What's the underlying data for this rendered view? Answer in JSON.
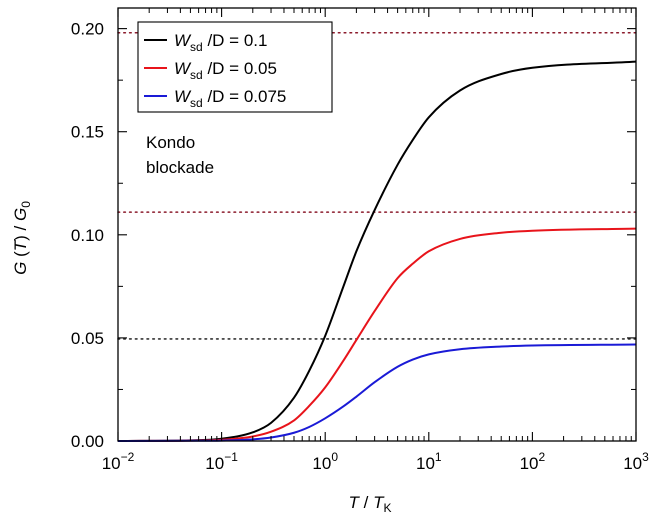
{
  "chart_data": {
    "type": "line",
    "x_scale": "log",
    "xlim": [
      0.01,
      1000
    ],
    "ylim": [
      0,
      0.21
    ],
    "xticks": [
      {
        "base": "10",
        "exp": "−2"
      },
      {
        "base": "10",
        "exp": "−1"
      },
      {
        "base": "10",
        "exp": "0"
      },
      {
        "base": "10",
        "exp": "1"
      },
      {
        "base": "10",
        "exp": "2"
      },
      {
        "base": "10",
        "exp": "3"
      }
    ],
    "xtick_values": [
      0.01,
      0.1,
      1,
      10,
      100,
      1000
    ],
    "yticks": [
      "0.00",
      "0.05",
      "0.10",
      "0.15",
      "0.20"
    ],
    "ytick_values": [
      0,
      0.05,
      0.1,
      0.15,
      0.2
    ],
    "xlabel": {
      "t1": "T",
      "sep": " / ",
      "t2": "T",
      "sub": "K"
    },
    "ylabel": {
      "g": "G",
      "open": " (",
      "t": "T",
      "close": ") / ",
      "g2": "G",
      "sub": "0"
    },
    "annotation": [
      "Kondo",
      "blockade"
    ],
    "reference_lines": [
      {
        "y": 0.198,
        "color": "#8b1a2b"
      },
      {
        "y": 0.111,
        "color": "#8b1a2b"
      },
      {
        "y": 0.0495,
        "color": "#333333"
      }
    ],
    "series": [
      {
        "legend": {
          "w": "W",
          "sub": "sd",
          "rest": " /D = 0.1"
        },
        "color": "#000000",
        "x": [
          0.01,
          0.05,
          0.1,
          0.2,
          0.3,
          0.5,
          0.7,
          1,
          1.5,
          2,
          3,
          5,
          7,
          10,
          20,
          50,
          100,
          1000
        ],
        "y": [
          0.0,
          0.0003,
          0.0011,
          0.0042,
          0.0088,
          0.021,
          0.034,
          0.051,
          0.075,
          0.092,
          0.112,
          0.134,
          0.146,
          0.157,
          0.17,
          0.178,
          0.181,
          0.184
        ]
      },
      {
        "legend": {
          "w": "W",
          "sub": "sd",
          "rest": " /D = 0.05"
        },
        "color": "#e8141b",
        "x": [
          0.01,
          0.05,
          0.1,
          0.2,
          0.3,
          0.5,
          0.7,
          1,
          1.5,
          2,
          3,
          5,
          7,
          10,
          20,
          50,
          100,
          1000
        ],
        "y": [
          0.0,
          0.0002,
          0.0006,
          0.0022,
          0.0045,
          0.01,
          0.017,
          0.026,
          0.039,
          0.049,
          0.063,
          0.079,
          0.086,
          0.092,
          0.098,
          0.101,
          0.102,
          0.103
        ]
      },
      {
        "legend": {
          "w": "W",
          "sub": "sd",
          "rest": " /D = 0.075"
        },
        "color": "#1a1ad6",
        "x": [
          0.01,
          0.05,
          0.1,
          0.2,
          0.3,
          0.5,
          0.7,
          1,
          1.5,
          2,
          3,
          5,
          7,
          10,
          20,
          50,
          100,
          1000
        ],
        "y": [
          0.0,
          0.0001,
          0.0002,
          0.0008,
          0.0017,
          0.004,
          0.0068,
          0.011,
          0.0168,
          0.0215,
          0.0285,
          0.036,
          0.0395,
          0.042,
          0.0445,
          0.0458,
          0.0463,
          0.0468
        ]
      }
    ]
  }
}
